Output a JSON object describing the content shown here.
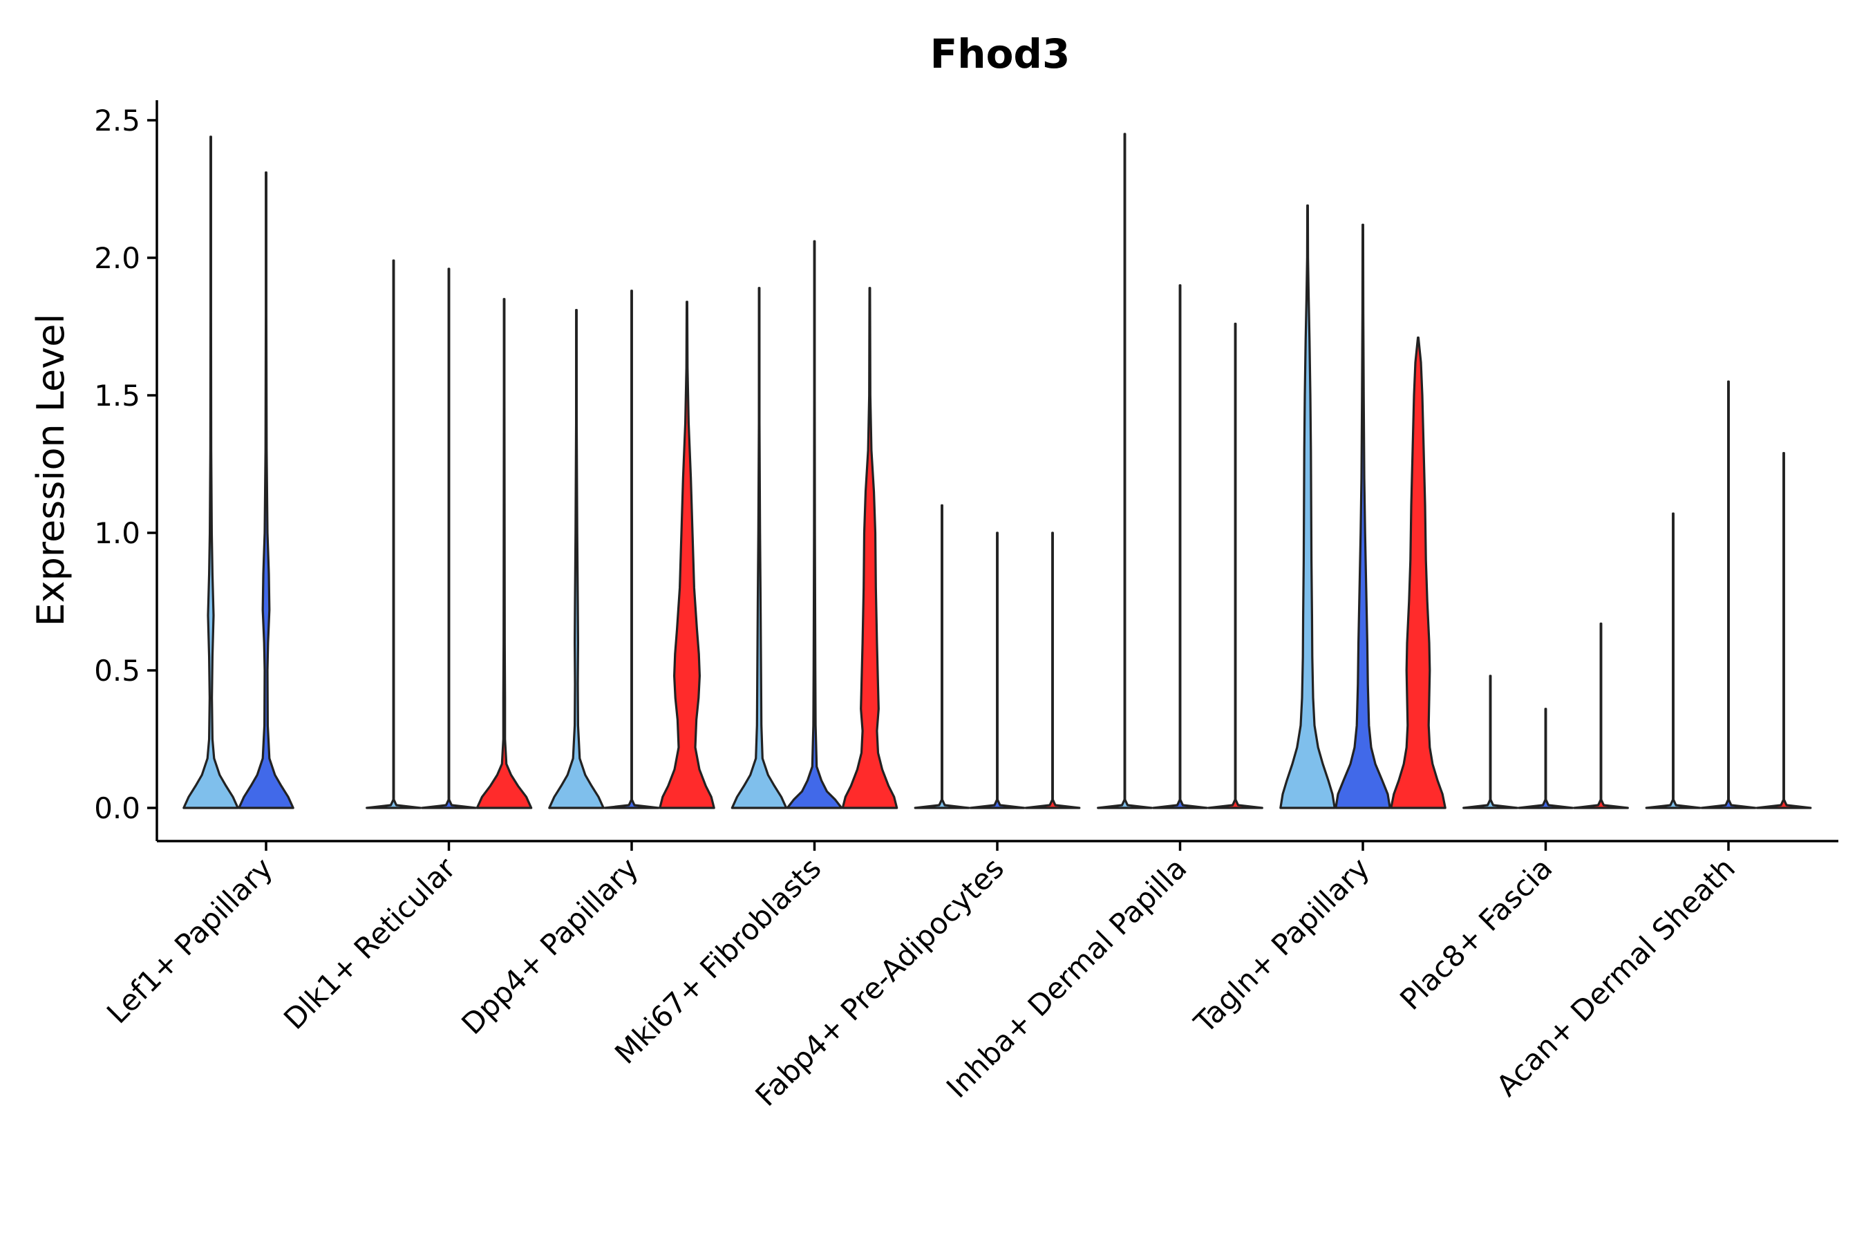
{
  "chart_data": {
    "type": "violin",
    "title": "Fhod3",
    "xlabel": "",
    "ylabel": "Expression Level",
    "ylim": [
      -0.12,
      2.58
    ],
    "yticks": [
      {
        "value": 0.0,
        "label": "0.0"
      },
      {
        "value": 0.5,
        "label": "0.5"
      },
      {
        "value": 1.0,
        "label": "1.0"
      },
      {
        "value": 1.5,
        "label": "1.5"
      },
      {
        "value": 2.0,
        "label": "2.0"
      },
      {
        "value": 2.5,
        "label": "2.5"
      }
    ],
    "grid": false,
    "legend": "none",
    "series_colors": {
      "A": "#7fbfec",
      "B": "#4169e9",
      "C": "#ff2b2b"
    },
    "categories": [
      "Lef1+ Papillary",
      "Dlk1+ Reticular",
      "Dpp4+ Papillary",
      "Mki67+ Fibroblasts",
      "Fabp4+ Pre-Adipocytes",
      "Inhba+ Dermal Papilla",
      "Tagln+ Papillary",
      "Plac8+ Fascia",
      "Acan+ Dermal Sheath"
    ],
    "violins": [
      {
        "category": 0,
        "series": "A",
        "max": 2.44,
        "profile": [
          [
            0,
            0.98
          ],
          [
            0.04,
            0.8
          ],
          [
            0.08,
            0.55
          ],
          [
            0.12,
            0.32
          ],
          [
            0.18,
            0.12
          ],
          [
            0.25,
            0.06
          ],
          [
            0.4,
            0.04
          ],
          [
            0.55,
            0.06
          ],
          [
            0.7,
            0.1
          ],
          [
            0.85,
            0.06
          ],
          [
            1.0,
            0.035
          ],
          [
            1.3,
            0.015
          ],
          [
            1.8,
            0.005
          ],
          [
            2.44,
            0.0
          ]
        ]
      },
      {
        "category": 0,
        "series": "B",
        "max": 2.31,
        "profile": [
          [
            0,
            0.98
          ],
          [
            0.04,
            0.8
          ],
          [
            0.08,
            0.55
          ],
          [
            0.12,
            0.32
          ],
          [
            0.18,
            0.12
          ],
          [
            0.3,
            0.06
          ],
          [
            0.5,
            0.05
          ],
          [
            0.6,
            0.07
          ],
          [
            0.72,
            0.12
          ],
          [
            0.85,
            0.1
          ],
          [
            1.0,
            0.05
          ],
          [
            1.3,
            0.02
          ],
          [
            1.8,
            0.005
          ],
          [
            2.31,
            0.0
          ]
        ]
      },
      {
        "category": 1,
        "series": "A",
        "max": 1.99,
        "profile": [
          [
            0,
            0.97
          ],
          [
            0.01,
            0.1
          ],
          [
            0.03,
            0.008
          ],
          [
            1.99,
            0.0
          ]
        ]
      },
      {
        "category": 1,
        "series": "B",
        "max": 1.96,
        "profile": [
          [
            0,
            0.97
          ],
          [
            0.01,
            0.1
          ],
          [
            0.03,
            0.008
          ],
          [
            1.96,
            0.0
          ]
        ]
      },
      {
        "category": 1,
        "series": "C",
        "max": 1.85,
        "profile": [
          [
            0,
            0.98
          ],
          [
            0.04,
            0.8
          ],
          [
            0.08,
            0.5
          ],
          [
            0.12,
            0.25
          ],
          [
            0.16,
            0.08
          ],
          [
            0.25,
            0.03
          ],
          [
            0.4,
            0.03
          ],
          [
            0.6,
            0.02
          ],
          [
            1.0,
            0.015
          ],
          [
            1.5,
            0.005
          ],
          [
            1.85,
            0.0
          ]
        ]
      },
      {
        "category": 2,
        "series": "A",
        "max": 1.81,
        "profile": [
          [
            0,
            0.98
          ],
          [
            0.04,
            0.8
          ],
          [
            0.08,
            0.55
          ],
          [
            0.12,
            0.32
          ],
          [
            0.18,
            0.12
          ],
          [
            0.3,
            0.06
          ],
          [
            0.45,
            0.05
          ],
          [
            0.6,
            0.06
          ],
          [
            0.75,
            0.05
          ],
          [
            1.0,
            0.03
          ],
          [
            1.4,
            0.01
          ],
          [
            1.81,
            0.0
          ]
        ]
      },
      {
        "category": 2,
        "series": "B",
        "max": 1.88,
        "profile": [
          [
            0,
            0.97
          ],
          [
            0.01,
            0.1
          ],
          [
            0.03,
            0.008
          ],
          [
            1.88,
            0.0
          ]
        ]
      },
      {
        "category": 2,
        "series": "C",
        "max": 1.84,
        "profile": [
          [
            0,
            0.98
          ],
          [
            0.04,
            0.88
          ],
          [
            0.08,
            0.68
          ],
          [
            0.14,
            0.45
          ],
          [
            0.22,
            0.3
          ],
          [
            0.32,
            0.34
          ],
          [
            0.4,
            0.42
          ],
          [
            0.48,
            0.46
          ],
          [
            0.56,
            0.43
          ],
          [
            0.65,
            0.36
          ],
          [
            0.8,
            0.26
          ],
          [
            1.0,
            0.2
          ],
          [
            1.2,
            0.14
          ],
          [
            1.4,
            0.06
          ],
          [
            1.6,
            0.02
          ],
          [
            1.84,
            0.0
          ]
        ]
      },
      {
        "category": 3,
        "series": "A",
        "max": 1.89,
        "profile": [
          [
            0,
            0.98
          ],
          [
            0.04,
            0.8
          ],
          [
            0.08,
            0.55
          ],
          [
            0.12,
            0.32
          ],
          [
            0.18,
            0.12
          ],
          [
            0.3,
            0.08
          ],
          [
            0.45,
            0.07
          ],
          [
            0.6,
            0.06
          ],
          [
            0.75,
            0.05
          ],
          [
            1.0,
            0.03
          ],
          [
            1.4,
            0.01
          ],
          [
            1.89,
            0.0
          ]
        ]
      },
      {
        "category": 3,
        "series": "B",
        "max": 2.06,
        "profile": [
          [
            0,
            0.98
          ],
          [
            0.03,
            0.75
          ],
          [
            0.06,
            0.45
          ],
          [
            0.1,
            0.25
          ],
          [
            0.15,
            0.08
          ],
          [
            0.3,
            0.04
          ],
          [
            0.5,
            0.03
          ],
          [
            1.0,
            0.015
          ],
          [
            1.5,
            0.005
          ],
          [
            2.06,
            0.0
          ]
        ]
      },
      {
        "category": 3,
        "series": "C",
        "max": 1.89,
        "profile": [
          [
            0,
            0.98
          ],
          [
            0.04,
            0.88
          ],
          [
            0.08,
            0.68
          ],
          [
            0.14,
            0.45
          ],
          [
            0.2,
            0.3
          ],
          [
            0.28,
            0.26
          ],
          [
            0.36,
            0.32
          ],
          [
            0.44,
            0.3
          ],
          [
            0.6,
            0.26
          ],
          [
            0.8,
            0.22
          ],
          [
            1.0,
            0.2
          ],
          [
            1.15,
            0.15
          ],
          [
            1.3,
            0.06
          ],
          [
            1.5,
            0.02
          ],
          [
            1.89,
            0.0
          ]
        ]
      },
      {
        "category": 4,
        "series": "A",
        "max": 1.1,
        "profile": [
          [
            0,
            0.97
          ],
          [
            0.01,
            0.1
          ],
          [
            0.03,
            0.008
          ],
          [
            1.1,
            0.0
          ]
        ]
      },
      {
        "category": 4,
        "series": "B",
        "max": 1.0,
        "profile": [
          [
            0,
            0.97
          ],
          [
            0.01,
            0.1
          ],
          [
            0.03,
            0.008
          ],
          [
            1.0,
            0.0
          ]
        ]
      },
      {
        "category": 4,
        "series": "C",
        "max": 1.0,
        "profile": [
          [
            0,
            0.97
          ],
          [
            0.01,
            0.1
          ],
          [
            0.03,
            0.008
          ],
          [
            1.0,
            0.0
          ]
        ]
      },
      {
        "category": 5,
        "series": "A",
        "max": 2.45,
        "profile": [
          [
            0,
            0.97
          ],
          [
            0.01,
            0.1
          ],
          [
            0.03,
            0.008
          ],
          [
            2.45,
            0.0
          ]
        ]
      },
      {
        "category": 5,
        "series": "B",
        "max": 1.9,
        "profile": [
          [
            0,
            0.97
          ],
          [
            0.01,
            0.1
          ],
          [
            0.03,
            0.008
          ],
          [
            1.9,
            0.0
          ]
        ]
      },
      {
        "category": 5,
        "series": "C",
        "max": 1.76,
        "profile": [
          [
            0,
            0.97
          ],
          [
            0.01,
            0.1
          ],
          [
            0.03,
            0.008
          ],
          [
            1.76,
            0.0
          ]
        ]
      },
      {
        "category": 6,
        "series": "A",
        "max": 2.19,
        "profile": [
          [
            0,
            0.98
          ],
          [
            0.05,
            0.9
          ],
          [
            0.1,
            0.75
          ],
          [
            0.16,
            0.55
          ],
          [
            0.22,
            0.38
          ],
          [
            0.3,
            0.25
          ],
          [
            0.4,
            0.2
          ],
          [
            0.55,
            0.17
          ],
          [
            0.7,
            0.16
          ],
          [
            0.9,
            0.14
          ],
          [
            1.1,
            0.13
          ],
          [
            1.3,
            0.12
          ],
          [
            1.5,
            0.1
          ],
          [
            1.7,
            0.07
          ],
          [
            1.85,
            0.04
          ],
          [
            2.0,
            0.015
          ],
          [
            2.19,
            0.0
          ]
        ]
      },
      {
        "category": 6,
        "series": "B",
        "max": 2.12,
        "profile": [
          [
            0,
            0.98
          ],
          [
            0.05,
            0.9
          ],
          [
            0.1,
            0.7
          ],
          [
            0.16,
            0.45
          ],
          [
            0.22,
            0.3
          ],
          [
            0.3,
            0.22
          ],
          [
            0.45,
            0.18
          ],
          [
            0.6,
            0.16
          ],
          [
            0.8,
            0.12
          ],
          [
            1.0,
            0.08
          ],
          [
            1.2,
            0.05
          ],
          [
            1.5,
            0.03
          ],
          [
            1.8,
            0.015
          ],
          [
            2.12,
            0.0
          ]
        ]
      },
      {
        "category": 6,
        "series": "C",
        "max": 1.71,
        "profile": [
          [
            0,
            0.98
          ],
          [
            0.05,
            0.88
          ],
          [
            0.1,
            0.7
          ],
          [
            0.16,
            0.52
          ],
          [
            0.22,
            0.42
          ],
          [
            0.3,
            0.38
          ],
          [
            0.4,
            0.4
          ],
          [
            0.5,
            0.42
          ],
          [
            0.6,
            0.4
          ],
          [
            0.75,
            0.33
          ],
          [
            0.9,
            0.28
          ],
          [
            1.1,
            0.25
          ],
          [
            1.3,
            0.2
          ],
          [
            1.5,
            0.15
          ],
          [
            1.62,
            0.1
          ],
          [
            1.71,
            0.0
          ]
        ]
      },
      {
        "category": 7,
        "series": "A",
        "max": 0.48,
        "profile": [
          [
            0,
            0.97
          ],
          [
            0.01,
            0.1
          ],
          [
            0.03,
            0.008
          ],
          [
            0.48,
            0.0
          ]
        ]
      },
      {
        "category": 7,
        "series": "B",
        "max": 0.36,
        "profile": [
          [
            0,
            0.97
          ],
          [
            0.01,
            0.1
          ],
          [
            0.03,
            0.008
          ],
          [
            0.36,
            0.0
          ]
        ]
      },
      {
        "category": 7,
        "series": "C",
        "max": 0.67,
        "profile": [
          [
            0,
            0.97
          ],
          [
            0.01,
            0.1
          ],
          [
            0.03,
            0.008
          ],
          [
            0.67,
            0.0
          ]
        ]
      },
      {
        "category": 8,
        "series": "A",
        "max": 1.07,
        "profile": [
          [
            0,
            0.97
          ],
          [
            0.01,
            0.1
          ],
          [
            0.03,
            0.008
          ],
          [
            1.07,
            0.0
          ]
        ]
      },
      {
        "category": 8,
        "series": "B",
        "max": 1.55,
        "profile": [
          [
            0,
            0.97
          ],
          [
            0.01,
            0.1
          ],
          [
            0.03,
            0.008
          ],
          [
            1.55,
            0.0
          ]
        ]
      },
      {
        "category": 8,
        "series": "C",
        "max": 1.29,
        "profile": [
          [
            0,
            0.97
          ],
          [
            0.01,
            0.1
          ],
          [
            0.03,
            0.008
          ],
          [
            1.29,
            0.0
          ]
        ]
      }
    ]
  }
}
